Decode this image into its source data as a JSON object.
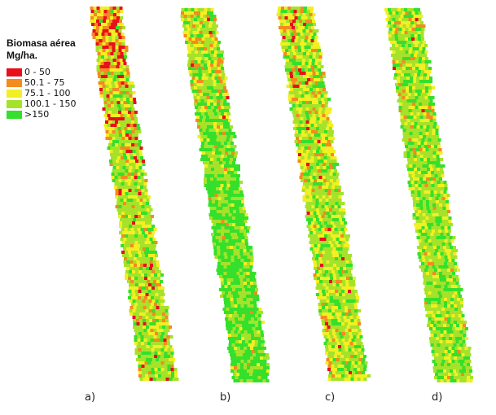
{
  "legend": {
    "title_line1": "Biomasa aérea",
    "title_line2": "Mg/ha.",
    "classes": [
      {
        "label": "0 - 50",
        "color": "#e8101a"
      },
      {
        "label": "50.1 - 75",
        "color": "#f58a1f"
      },
      {
        "label": "75.1 - 100",
        "color": "#f2ef22"
      },
      {
        "label": "100.1 - 150",
        "color": "#a6e22a"
      },
      {
        "label": ">150",
        "color": "#35e02c"
      }
    ]
  },
  "panels": [
    {
      "label": "a)"
    },
    {
      "label": "b)"
    },
    {
      "label": "c)"
    },
    {
      "label": "d)"
    }
  ]
}
